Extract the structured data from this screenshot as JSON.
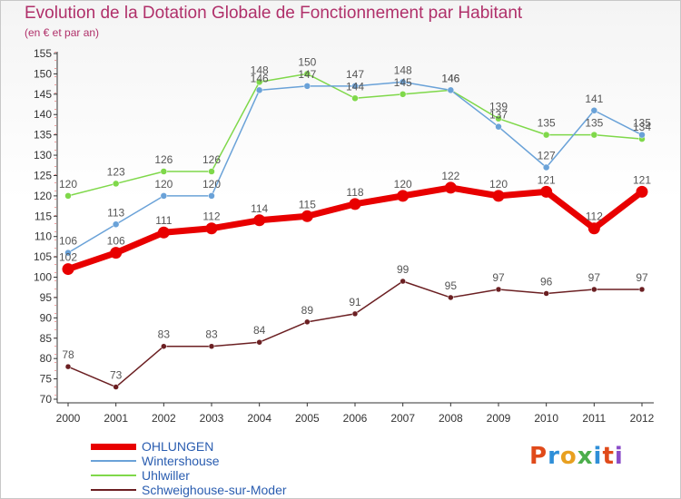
{
  "title": "Evolution de la Dotation Globale de Fonctionnement par Habitant",
  "subtitle": "(en € et par an)",
  "logo": {
    "text": "Proxiti",
    "colors": [
      "#e04a1a",
      "#2f8fd8",
      "#e8a020",
      "#4cae4c",
      "#2f8fd8",
      "#e04a1a",
      "#8a4cc8"
    ]
  },
  "chart_data": {
    "type": "line",
    "title": "Evolution de la Dotation Globale de Fonctionnement par Habitant",
    "subtitle": "(en € et par an)",
    "xlabel": "",
    "ylabel": "",
    "ylim": [
      70,
      155
    ],
    "yticks": [
      70,
      75,
      80,
      85,
      90,
      95,
      100,
      105,
      110,
      115,
      120,
      125,
      130,
      135,
      140,
      145,
      150,
      155
    ],
    "grid": false,
    "legend_position": "bottom-left",
    "categories": [
      "2000",
      "2001",
      "2002",
      "2003",
      "2004",
      "2005",
      "2006",
      "2007",
      "2008",
      "2009",
      "2010",
      "2011",
      "2012"
    ],
    "series": [
      {
        "name": "OHLUNGEN",
        "color": "#e80000",
        "line_width": 7,
        "marker_radius": 6.5,
        "values": [
          102,
          106,
          111,
          112,
          114,
          115,
          118,
          120,
          122,
          120,
          121,
          112,
          121
        ]
      },
      {
        "name": "Wintershouse",
        "color": "#6aa2d8",
        "line_width": 1.5,
        "marker_radius": 3.5,
        "values": [
          106,
          113,
          120,
          120,
          146,
          147,
          147,
          148,
          146,
          137,
          127,
          141,
          135
        ]
      },
      {
        "name": "Uhlwiller",
        "color": "#7fd84a",
        "line_width": 1.5,
        "marker_radius": 3.5,
        "values": [
          120,
          123,
          126,
          126,
          148,
          150,
          144,
          145,
          146,
          139,
          135,
          135,
          134
        ]
      },
      {
        "name": "Schweighouse-sur-Moder",
        "color": "#6b1f22",
        "line_width": 1.5,
        "marker_radius": 3,
        "values": [
          78,
          73,
          83,
          83,
          84,
          89,
          91,
          99,
          95,
          97,
          96,
          97,
          97
        ]
      }
    ]
  }
}
